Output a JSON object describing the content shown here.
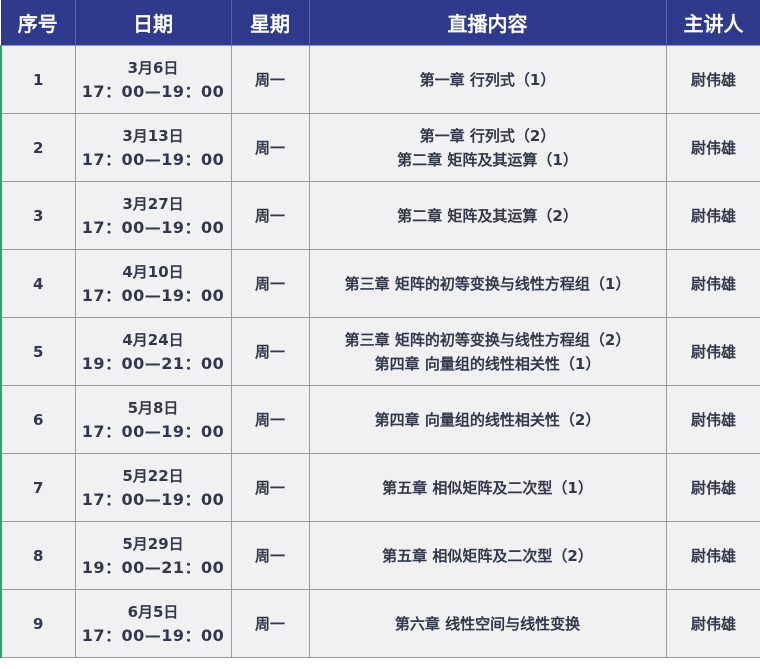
{
  "headers": [
    "序号",
    "日期",
    "星期",
    "直播内容",
    "主讲人"
  ],
  "rows": [
    {
      "no": "1",
      "date": "3月6日",
      "time": "17：00—19：00",
      "weekday": "周一",
      "content": [
        "第一章 行列式（1）"
      ],
      "lecturer": "尉伟雄"
    },
    {
      "no": "2",
      "date": "3月13日",
      "time": "17：00—19：00",
      "weekday": "周一",
      "content": [
        "第一章 行列式（2）",
        "第二章 矩阵及其运算（1）"
      ],
      "lecturer": "尉伟雄"
    },
    {
      "no": "3",
      "date": "3月27日",
      "time": "17：00—19：00",
      "weekday": "周一",
      "content": [
        "第二章 矩阵及其运算（2）"
      ],
      "lecturer": "尉伟雄"
    },
    {
      "no": "4",
      "date": "4月10日",
      "time": "17：00—19：00",
      "weekday": "周一",
      "content": [
        "第三章 矩阵的初等变换与线性方程组（1）"
      ],
      "lecturer": "尉伟雄"
    },
    {
      "no": "5",
      "date": "4月24日",
      "time": "19：00—21：00",
      "weekday": "周一",
      "content": [
        "第三章 矩阵的初等变换与线性方程组（2）",
        "第四章 向量组的线性相关性（1）"
      ],
      "lecturer": "尉伟雄"
    },
    {
      "no": "6",
      "date": "5月8日",
      "time": "17：00—19：00",
      "weekday": "周一",
      "content": [
        "第四章 向量组的线性相关性（2）"
      ],
      "lecturer": "尉伟雄"
    },
    {
      "no": "7",
      "date": "5月22日",
      "time": "17：00—19：00",
      "weekday": "周一",
      "content": [
        "第五章 相似矩阵及二次型（1）"
      ],
      "lecturer": "尉伟雄"
    },
    {
      "no": "8",
      "date": "5月29日",
      "time": "19：00—21：00",
      "weekday": "周一",
      "content": [
        "第五章 相似矩阵及二次型（2）"
      ],
      "lecturer": "尉伟雄"
    },
    {
      "no": "9",
      "date": "6月5日",
      "time": "17：00—19：00",
      "weekday": "周一",
      "content": [
        "第六章 线性空间与线性变换"
      ],
      "lecturer": "尉伟雄"
    }
  ],
  "colors": {
    "header": "#2f3a8c",
    "cell": "#f1f1f3",
    "text": "#33384a"
  }
}
